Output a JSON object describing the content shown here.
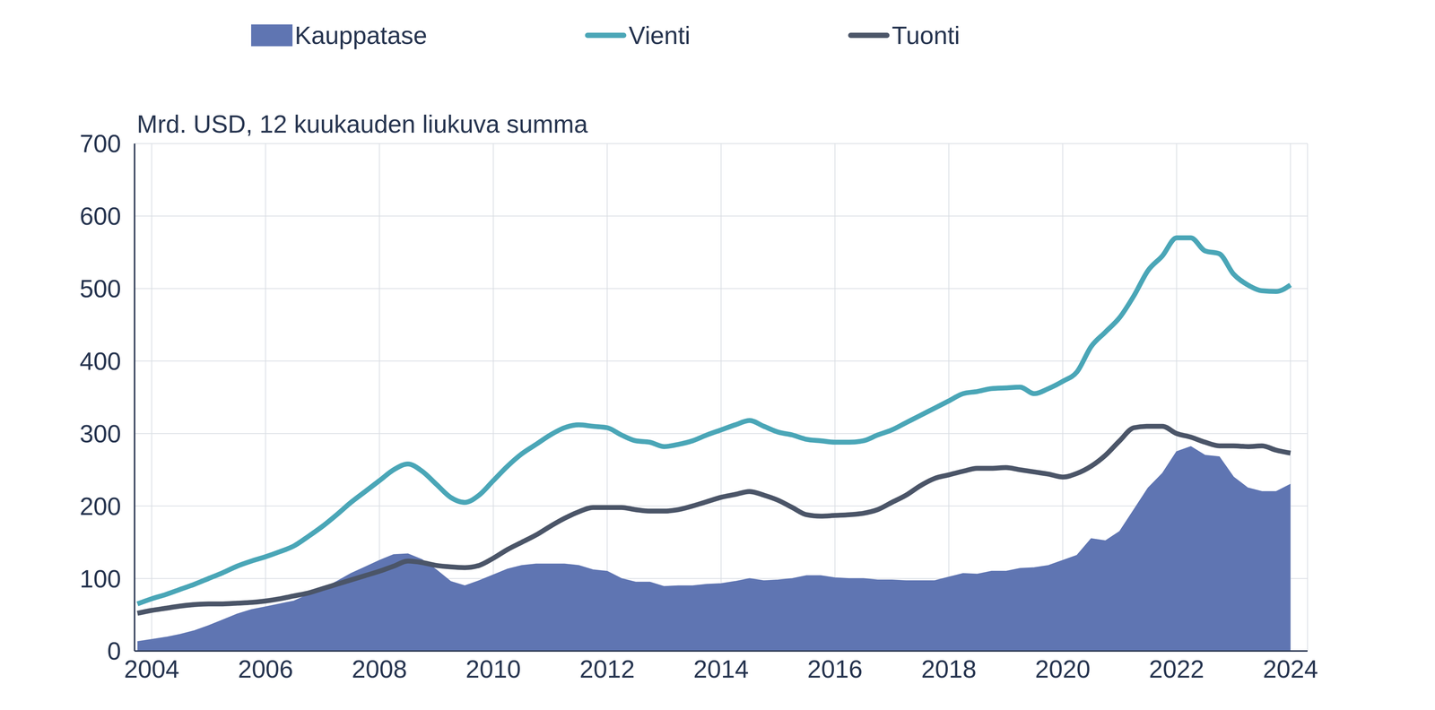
{
  "chart_data": {
    "type": "line",
    "subtitle": "Mrd. USD, 12 kuukauden liukuva summa",
    "legend": "top",
    "grid": true,
    "xlim": [
      2003.7,
      2024.3
    ],
    "xticks": [
      2004,
      2006,
      2008,
      2010,
      2012,
      2014,
      2016,
      2018,
      2020,
      2022,
      2024
    ],
    "ylim": [
      0,
      700
    ],
    "yticks": [
      0,
      100,
      200,
      300,
      400,
      500,
      600,
      700
    ],
    "x": [
      2003.75,
      2004.0,
      2004.25,
      2004.5,
      2004.75,
      2005.0,
      2005.25,
      2005.5,
      2005.75,
      2006.0,
      2006.25,
      2006.5,
      2006.75,
      2007.0,
      2007.25,
      2007.5,
      2007.75,
      2008.0,
      2008.25,
      2008.5,
      2008.75,
      2009.0,
      2009.25,
      2009.5,
      2009.75,
      2010.0,
      2010.25,
      2010.5,
      2010.75,
      2011.0,
      2011.25,
      2011.5,
      2011.75,
      2012.0,
      2012.25,
      2012.5,
      2012.75,
      2013.0,
      2013.25,
      2013.5,
      2013.75,
      2014.0,
      2014.25,
      2014.5,
      2014.75,
      2015.0,
      2015.25,
      2015.5,
      2015.75,
      2016.0,
      2016.25,
      2016.5,
      2016.75,
      2017.0,
      2017.25,
      2017.5,
      2017.75,
      2018.0,
      2018.25,
      2018.5,
      2018.75,
      2019.0,
      2019.25,
      2019.5,
      2019.75,
      2020.0,
      2020.25,
      2020.5,
      2020.75,
      2021.0,
      2021.25,
      2021.5,
      2021.75,
      2022.0,
      2022.25,
      2022.5,
      2022.75,
      2023.0,
      2023.25,
      2023.5,
      2023.75,
      2024.0
    ],
    "series": [
      {
        "name": "Kauppatase",
        "type": "area",
        "color": "#5f75b2",
        "values": [
          13,
          16,
          19,
          23,
          28,
          35,
          43,
          51,
          57,
          61,
          65,
          69,
          78,
          86,
          96,
          107,
          116,
          125,
          133,
          134,
          126,
          112,
          96,
          90,
          97,
          105,
          113,
          118,
          120,
          120,
          120,
          118,
          112,
          110,
          100,
          95,
          95,
          89,
          90,
          90,
          92,
          93,
          96,
          100,
          97,
          98,
          100,
          104,
          104,
          101,
          100,
          100,
          98,
          98,
          97,
          97,
          97,
          102,
          107,
          106,
          110,
          110,
          114,
          115,
          118,
          125,
          132,
          155,
          152,
          165,
          195,
          225,
          245,
          275,
          282,
          270,
          268,
          240,
          225,
          220,
          220,
          230
        ]
      },
      {
        "name": "Vienti",
        "type": "line",
        "color": "#4aa6b7",
        "values": [
          65,
          72,
          78,
          85,
          92,
          100,
          108,
          117,
          124,
          130,
          137,
          145,
          158,
          172,
          188,
          205,
          220,
          235,
          250,
          258,
          248,
          230,
          212,
          205,
          215,
          235,
          255,
          272,
          285,
          298,
          308,
          312,
          310,
          308,
          298,
          290,
          288,
          282,
          285,
          290,
          298,
          305,
          312,
          318,
          310,
          302,
          298,
          292,
          290,
          288,
          288,
          290,
          298,
          305,
          315,
          325,
          335,
          345,
          355,
          358,
          362,
          363,
          364,
          355,
          362,
          372,
          385,
          420,
          440,
          460,
          490,
          525,
          545,
          570,
          570,
          552,
          548,
          520,
          505,
          497,
          496,
          505
        ]
      },
      {
        "name": "Tuonti",
        "type": "line",
        "color": "#4b5568",
        "values": [
          52,
          56,
          59,
          62,
          64,
          65,
          65,
          66,
          67,
          69,
          72,
          76,
          80,
          86,
          92,
          98,
          104,
          110,
          117,
          124,
          122,
          118,
          116,
          115,
          118,
          128,
          140,
          150,
          160,
          172,
          183,
          192,
          198,
          198,
          198,
          195,
          193,
          193,
          195,
          200,
          206,
          212,
          216,
          220,
          215,
          208,
          198,
          188,
          186,
          187,
          188,
          190,
          195,
          205,
          215,
          228,
          238,
          243,
          248,
          252,
          252,
          253,
          250,
          247,
          244,
          240,
          245,
          255,
          270,
          290,
          308,
          310,
          310,
          300,
          295,
          288,
          283,
          283,
          282,
          283,
          277,
          273
        ]
      }
    ]
  }
}
